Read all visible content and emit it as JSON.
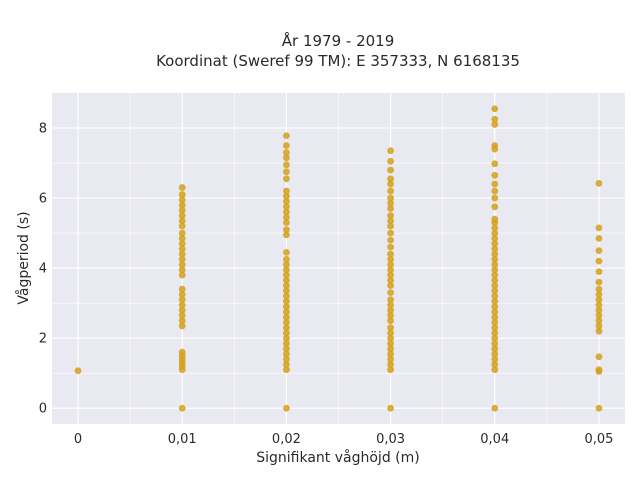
{
  "chart_data": {
    "type": "scatter",
    "title": "År 1979 - 2019",
    "subtitle": "Koordinat (Sweref 99 TM): E 357333, N 6168135",
    "xlabel": "Signifikant våghöjd (m)",
    "ylabel": "Vågperiod (s)",
    "xlim": [
      -0.0025,
      0.0525
    ],
    "ylim": [
      -0.45,
      9.0
    ],
    "x_ticks": [
      0,
      0.01,
      0.02,
      0.03,
      0.04,
      0.05
    ],
    "x_tick_labels": [
      "0",
      "0,01",
      "0,02",
      "0,03",
      "0,04",
      "0,05"
    ],
    "y_ticks": [
      0,
      2,
      4,
      6,
      8
    ],
    "y_tick_labels": [
      "0",
      "2",
      "4",
      "6",
      "8"
    ],
    "grid": true,
    "marker_color": "#d4a017",
    "plot_background": "#e9e9f1",
    "series": [
      {
        "points": [
          {
            "x": 0.0,
            "y": 1.07
          },
          {
            "x": 0.01,
            "y": 0.0
          },
          {
            "x": 0.01,
            "y": 1.1
          },
          {
            "x": 0.01,
            "y": 1.2
          },
          {
            "x": 0.01,
            "y": 1.3
          },
          {
            "x": 0.01,
            "y": 1.4
          },
          {
            "x": 0.01,
            "y": 1.5
          },
          {
            "x": 0.01,
            "y": 1.6
          },
          {
            "x": 0.01,
            "y": 2.35
          },
          {
            "x": 0.01,
            "y": 2.5
          },
          {
            "x": 0.01,
            "y": 2.65
          },
          {
            "x": 0.01,
            "y": 2.8
          },
          {
            "x": 0.01,
            "y": 2.95
          },
          {
            "x": 0.01,
            "y": 3.1
          },
          {
            "x": 0.01,
            "y": 3.25
          },
          {
            "x": 0.01,
            "y": 3.4
          },
          {
            "x": 0.01,
            "y": 3.8
          },
          {
            "x": 0.01,
            "y": 3.95
          },
          {
            "x": 0.01,
            "y": 4.1
          },
          {
            "x": 0.01,
            "y": 4.25
          },
          {
            "x": 0.01,
            "y": 4.4
          },
          {
            "x": 0.01,
            "y": 4.55
          },
          {
            "x": 0.01,
            "y": 4.7
          },
          {
            "x": 0.01,
            "y": 4.85
          },
          {
            "x": 0.01,
            "y": 5.0
          },
          {
            "x": 0.01,
            "y": 5.2
          },
          {
            "x": 0.01,
            "y": 5.35
          },
          {
            "x": 0.01,
            "y": 5.5
          },
          {
            "x": 0.01,
            "y": 5.65
          },
          {
            "x": 0.01,
            "y": 5.8
          },
          {
            "x": 0.01,
            "y": 5.95
          },
          {
            "x": 0.01,
            "y": 6.1
          },
          {
            "x": 0.01,
            "y": 6.3
          },
          {
            "x": 0.02,
            "y": 0.0
          },
          {
            "x": 0.02,
            "y": 1.1
          },
          {
            "x": 0.02,
            "y": 1.25
          },
          {
            "x": 0.02,
            "y": 1.4
          },
          {
            "x": 0.02,
            "y": 1.55
          },
          {
            "x": 0.02,
            "y": 1.7
          },
          {
            "x": 0.02,
            "y": 1.85
          },
          {
            "x": 0.02,
            "y": 2.0
          },
          {
            "x": 0.02,
            "y": 2.15
          },
          {
            "x": 0.02,
            "y": 2.3
          },
          {
            "x": 0.02,
            "y": 2.45
          },
          {
            "x": 0.02,
            "y": 2.6
          },
          {
            "x": 0.02,
            "y": 2.75
          },
          {
            "x": 0.02,
            "y": 2.9
          },
          {
            "x": 0.02,
            "y": 3.05
          },
          {
            "x": 0.02,
            "y": 3.2
          },
          {
            "x": 0.02,
            "y": 3.35
          },
          {
            "x": 0.02,
            "y": 3.5
          },
          {
            "x": 0.02,
            "y": 3.65
          },
          {
            "x": 0.02,
            "y": 3.8
          },
          {
            "x": 0.02,
            "y": 3.95
          },
          {
            "x": 0.02,
            "y": 4.1
          },
          {
            "x": 0.02,
            "y": 4.25
          },
          {
            "x": 0.02,
            "y": 4.45
          },
          {
            "x": 0.02,
            "y": 4.95
          },
          {
            "x": 0.02,
            "y": 5.1
          },
          {
            "x": 0.02,
            "y": 5.3
          },
          {
            "x": 0.02,
            "y": 5.45
          },
          {
            "x": 0.02,
            "y": 5.6
          },
          {
            "x": 0.02,
            "y": 5.75
          },
          {
            "x": 0.02,
            "y": 5.9
          },
          {
            "x": 0.02,
            "y": 6.05
          },
          {
            "x": 0.02,
            "y": 6.2
          },
          {
            "x": 0.02,
            "y": 6.55
          },
          {
            "x": 0.02,
            "y": 6.75
          },
          {
            "x": 0.02,
            "y": 6.95
          },
          {
            "x": 0.02,
            "y": 7.15
          },
          {
            "x": 0.02,
            "y": 7.3
          },
          {
            "x": 0.02,
            "y": 7.5
          },
          {
            "x": 0.02,
            "y": 7.78
          },
          {
            "x": 0.03,
            "y": 0.0
          },
          {
            "x": 0.03,
            "y": 1.1
          },
          {
            "x": 0.03,
            "y": 1.25
          },
          {
            "x": 0.03,
            "y": 1.4
          },
          {
            "x": 0.03,
            "y": 1.55
          },
          {
            "x": 0.03,
            "y": 1.7
          },
          {
            "x": 0.03,
            "y": 1.85
          },
          {
            "x": 0.03,
            "y": 2.0
          },
          {
            "x": 0.03,
            "y": 2.15
          },
          {
            "x": 0.03,
            "y": 2.3
          },
          {
            "x": 0.03,
            "y": 2.5
          },
          {
            "x": 0.03,
            "y": 2.65
          },
          {
            "x": 0.03,
            "y": 2.8
          },
          {
            "x": 0.03,
            "y": 2.95
          },
          {
            "x": 0.03,
            "y": 3.1
          },
          {
            "x": 0.03,
            "y": 3.3
          },
          {
            "x": 0.03,
            "y": 3.5
          },
          {
            "x": 0.03,
            "y": 3.65
          },
          {
            "x": 0.03,
            "y": 3.8
          },
          {
            "x": 0.03,
            "y": 3.95
          },
          {
            "x": 0.03,
            "y": 4.1
          },
          {
            "x": 0.03,
            "y": 4.25
          },
          {
            "x": 0.03,
            "y": 4.4
          },
          {
            "x": 0.03,
            "y": 4.6
          },
          {
            "x": 0.03,
            "y": 4.8
          },
          {
            "x": 0.03,
            "y": 5.0
          },
          {
            "x": 0.03,
            "y": 5.2
          },
          {
            "x": 0.03,
            "y": 5.35
          },
          {
            "x": 0.03,
            "y": 5.5
          },
          {
            "x": 0.03,
            "y": 5.7
          },
          {
            "x": 0.03,
            "y": 5.85
          },
          {
            "x": 0.03,
            "y": 6.0
          },
          {
            "x": 0.03,
            "y": 6.2
          },
          {
            "x": 0.03,
            "y": 6.4
          },
          {
            "x": 0.03,
            "y": 6.55
          },
          {
            "x": 0.03,
            "y": 6.8
          },
          {
            "x": 0.03,
            "y": 7.05
          },
          {
            "x": 0.03,
            "y": 7.35
          },
          {
            "x": 0.04,
            "y": 0.0
          },
          {
            "x": 0.04,
            "y": 1.1
          },
          {
            "x": 0.04,
            "y": 1.25
          },
          {
            "x": 0.04,
            "y": 1.4
          },
          {
            "x": 0.04,
            "y": 1.55
          },
          {
            "x": 0.04,
            "y": 1.7
          },
          {
            "x": 0.04,
            "y": 1.85
          },
          {
            "x": 0.04,
            "y": 2.0
          },
          {
            "x": 0.04,
            "y": 2.15
          },
          {
            "x": 0.04,
            "y": 2.3
          },
          {
            "x": 0.04,
            "y": 2.45
          },
          {
            "x": 0.04,
            "y": 2.6
          },
          {
            "x": 0.04,
            "y": 2.75
          },
          {
            "x": 0.04,
            "y": 2.9
          },
          {
            "x": 0.04,
            "y": 3.05
          },
          {
            "x": 0.04,
            "y": 3.2
          },
          {
            "x": 0.04,
            "y": 3.35
          },
          {
            "x": 0.04,
            "y": 3.5
          },
          {
            "x": 0.04,
            "y": 3.65
          },
          {
            "x": 0.04,
            "y": 3.8
          },
          {
            "x": 0.04,
            "y": 3.95
          },
          {
            "x": 0.04,
            "y": 4.1
          },
          {
            "x": 0.04,
            "y": 4.25
          },
          {
            "x": 0.04,
            "y": 4.4
          },
          {
            "x": 0.04,
            "y": 4.55
          },
          {
            "x": 0.04,
            "y": 4.7
          },
          {
            "x": 0.04,
            "y": 4.85
          },
          {
            "x": 0.04,
            "y": 5.0
          },
          {
            "x": 0.04,
            "y": 5.15
          },
          {
            "x": 0.04,
            "y": 5.3
          },
          {
            "x": 0.04,
            "y": 5.4
          },
          {
            "x": 0.04,
            "y": 5.75
          },
          {
            "x": 0.04,
            "y": 6.0
          },
          {
            "x": 0.04,
            "y": 6.2
          },
          {
            "x": 0.04,
            "y": 6.4
          },
          {
            "x": 0.04,
            "y": 6.65
          },
          {
            "x": 0.04,
            "y": 6.98
          },
          {
            "x": 0.04,
            "y": 7.4
          },
          {
            "x": 0.04,
            "y": 7.5
          },
          {
            "x": 0.04,
            "y": 8.1
          },
          {
            "x": 0.04,
            "y": 8.25
          },
          {
            "x": 0.04,
            "y": 8.55
          },
          {
            "x": 0.05,
            "y": 0.0
          },
          {
            "x": 0.05,
            "y": 1.05
          },
          {
            "x": 0.05,
            "y": 1.1
          },
          {
            "x": 0.05,
            "y": 1.47
          },
          {
            "x": 0.05,
            "y": 2.2
          },
          {
            "x": 0.05,
            "y": 2.35
          },
          {
            "x": 0.05,
            "y": 2.5
          },
          {
            "x": 0.05,
            "y": 2.65
          },
          {
            "x": 0.05,
            "y": 2.8
          },
          {
            "x": 0.05,
            "y": 2.95
          },
          {
            "x": 0.05,
            "y": 3.1
          },
          {
            "x": 0.05,
            "y": 3.25
          },
          {
            "x": 0.05,
            "y": 3.4
          },
          {
            "x": 0.05,
            "y": 3.6
          },
          {
            "x": 0.05,
            "y": 3.9
          },
          {
            "x": 0.05,
            "y": 4.2
          },
          {
            "x": 0.05,
            "y": 4.5
          },
          {
            "x": 0.05,
            "y": 4.85
          },
          {
            "x": 0.05,
            "y": 5.15
          },
          {
            "x": 0.05,
            "y": 6.42
          }
        ]
      }
    ]
  }
}
